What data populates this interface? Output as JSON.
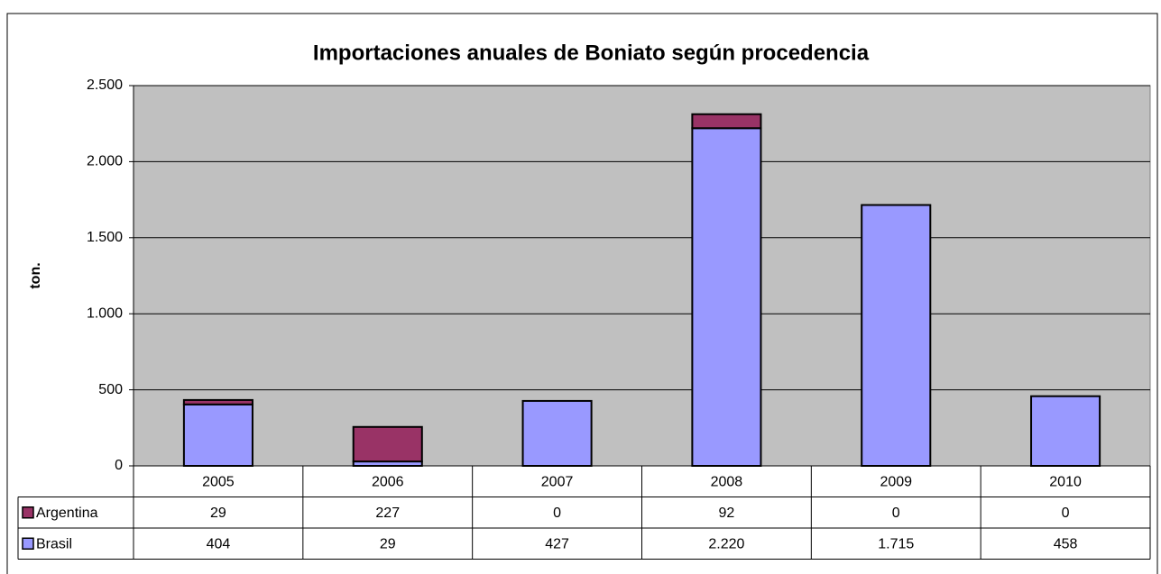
{
  "chart_data": {
    "type": "bar",
    "stacked": true,
    "title": "Importaciones anuales de Boniato según procedencia",
    "y_label": "ton.",
    "categories": [
      "2005",
      "2006",
      "2007",
      "2008",
      "2009",
      "2010"
    ],
    "series": [
      {
        "name": "Brasil",
        "color": "#9999ff",
        "values": [
          404,
          29,
          427,
          2220,
          1715,
          458
        ],
        "value_labels": [
          "404",
          "29",
          "427",
          "2.220",
          "1.715",
          "458"
        ]
      },
      {
        "name": "Argentina",
        "color": "#993366",
        "values": [
          29,
          227,
          0,
          92,
          0,
          0
        ]
      }
    ],
    "ylim": [
      0,
      2500
    ],
    "yticks": [
      0,
      500,
      {
        "value": 1000,
        "label": "1.000"
      },
      {
        "value": 1500,
        "label": "1.500"
      },
      {
        "value": 2000,
        "label": "2.000"
      },
      {
        "value": 2500,
        "label": "2.500"
      }
    ],
    "grid": true,
    "plot_background": "#c0c0c0"
  }
}
